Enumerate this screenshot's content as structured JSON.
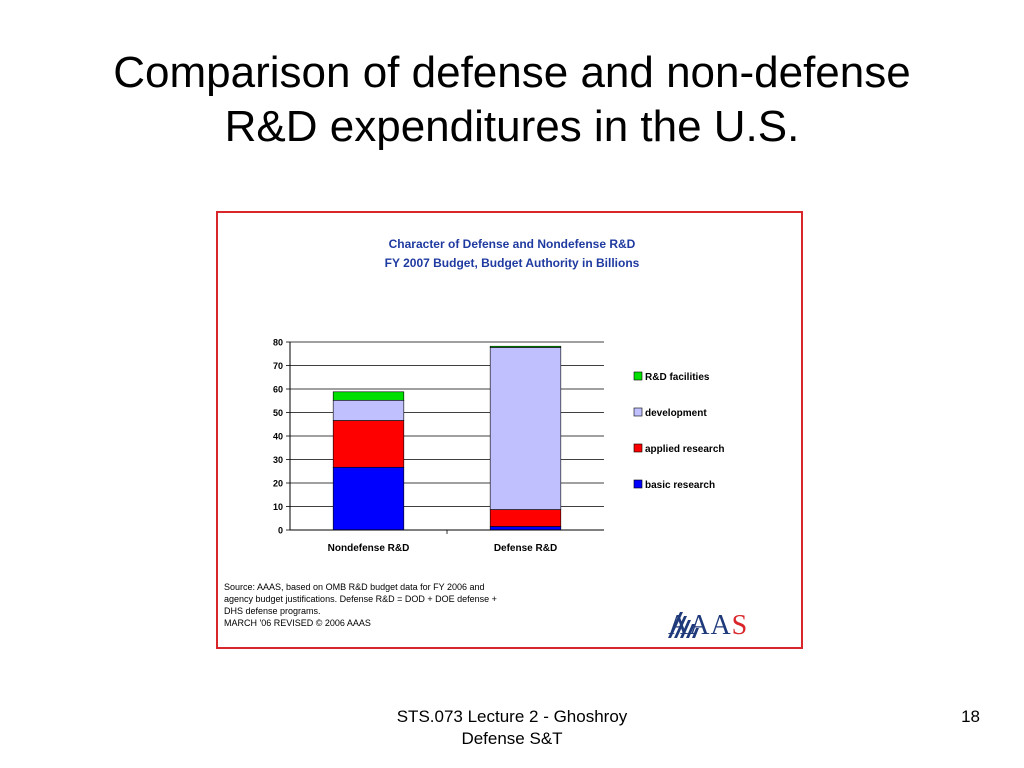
{
  "slide": {
    "title_line1": "Comparison of defense and non-defense",
    "title_line2": "R&D expenditures in the U.S.",
    "footer_line1": "STS.073 Lecture 2 - Ghoshroy",
    "footer_line2": "Defense S&T",
    "page_number": "18"
  },
  "source_note": {
    "line1": "Source: AAAS, based on OMB R&D budget data for FY 2006 and",
    "line2": "agency budget justifications. Defense R&D = DOD + DOE defense +",
    "line3": "DHS defense programs.",
    "line4": "MARCH '06 REVISED © 2006 AAAS"
  },
  "logo": {
    "text_main": "AAA",
    "text_last": "S"
  },
  "chart_data": {
    "type": "bar",
    "stacked": true,
    "title": "Character of Defense and Nondefense R&D",
    "subtitle": "FY 2007 Budget, Budget Authority in Billions",
    "xlabel": "",
    "ylabel": "",
    "categories": [
      "Nondefense R&D",
      "Defense R&D"
    ],
    "ylim": [
      0,
      80
    ],
    "yticks": [
      0,
      10,
      20,
      30,
      40,
      50,
      60,
      70,
      80
    ],
    "grid": true,
    "legend_position": "right",
    "series": [
      {
        "name": "basic research",
        "values": [
          26.7,
          1.5
        ],
        "color": "#0000ff"
      },
      {
        "name": "applied research",
        "values": [
          19.9,
          7.2
        ],
        "color": "#ff0000"
      },
      {
        "name": "development",
        "values": [
          8.6,
          69.0
        ],
        "color": "#c0c0ff"
      },
      {
        "name": "R&D facilities",
        "values": [
          3.6,
          0.5
        ],
        "color": "#00e000"
      }
    ],
    "legend_order": [
      "R&D facilities",
      "development",
      "applied research",
      "basic research"
    ]
  }
}
